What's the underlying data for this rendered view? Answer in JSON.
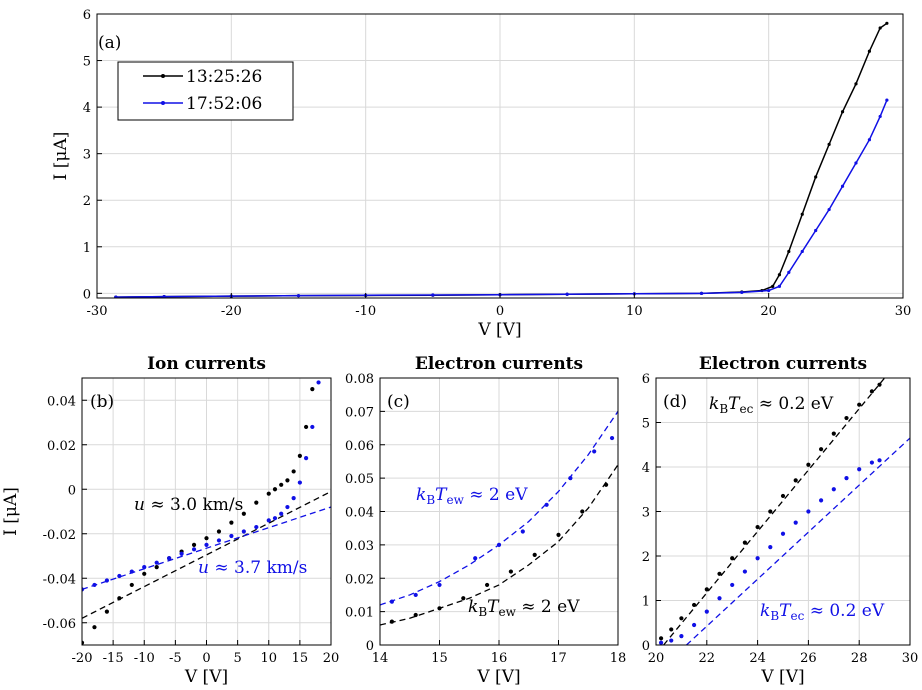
{
  "colors": {
    "black": "#000000",
    "blue": "#1010e6"
  },
  "legend": {
    "items": [
      {
        "label": "13:25:26",
        "color": "#000000"
      },
      {
        "label": "17:52:06",
        "color": "#1010e6"
      }
    ],
    "placement": "top-left"
  },
  "chart_data": [
    {
      "panel_label": "(a)",
      "type": "line",
      "title": "",
      "xlabel": "V   [V]",
      "ylabel": "I   [μA]",
      "xlim": [
        -30,
        30
      ],
      "ylim": [
        -0.1,
        6
      ],
      "xticks": [
        -30,
        -20,
        -10,
        0,
        10,
        20,
        30
      ],
      "yticks": [
        0,
        1,
        2,
        3,
        4,
        5,
        6
      ],
      "grid": true,
      "series": [
        {
          "name": "13:25:26",
          "color": "#000000",
          "x": [
            -28.6,
            -25,
            -20,
            -15,
            -10,
            -5,
            0,
            5,
            10,
            15,
            18,
            19.5,
            20.3,
            20.8,
            21.5,
            22.5,
            23.5,
            24.5,
            25.5,
            26.5,
            27.5,
            28.3,
            28.8
          ],
          "y": [
            -0.08,
            -0.07,
            -0.06,
            -0.05,
            -0.045,
            -0.04,
            -0.03,
            -0.02,
            -0.01,
            0.0,
            0.03,
            0.06,
            0.15,
            0.4,
            0.9,
            1.7,
            2.5,
            3.2,
            3.9,
            4.5,
            5.2,
            5.7,
            5.8
          ]
        },
        {
          "name": "17:52:06",
          "color": "#1010e6",
          "x": [
            -28.6,
            -25,
            -20,
            -15,
            -10,
            -5,
            0,
            5,
            10,
            15,
            18,
            20,
            20.8,
            21.5,
            22.5,
            23.5,
            24.5,
            25.5,
            26.5,
            27.5,
            28.3,
            28.8
          ],
          "y": [
            -0.08,
            -0.07,
            -0.06,
            -0.05,
            -0.04,
            -0.035,
            -0.03,
            -0.02,
            -0.01,
            0.0,
            0.02,
            0.06,
            0.15,
            0.45,
            0.9,
            1.35,
            1.8,
            2.3,
            2.8,
            3.3,
            3.8,
            4.15
          ]
        }
      ]
    },
    {
      "panel_label": "(b)",
      "type": "scatter",
      "title": "Ion currents",
      "xlabel": "V   [V]",
      "ylabel": "I   [μA]",
      "xlim": [
        -20,
        20
      ],
      "ylim": [
        -0.07,
        0.05
      ],
      "xticks": [
        -20,
        -15,
        -10,
        -5,
        0,
        5,
        10,
        15,
        20
      ],
      "yticks": [
        -0.06,
        -0.04,
        -0.02,
        0,
        0.02,
        0.04
      ],
      "ytick_labels": [
        "-0.06",
        "-0.04",
        "-0.02",
        "0",
        "0.02",
        "0.04"
      ],
      "grid": true,
      "series": [
        {
          "name": "",
          "color": "#000000",
          "x": [
            -20,
            -18,
            -16,
            -14,
            -12,
            -10,
            -8,
            -6,
            -4,
            -2,
            0,
            2,
            4,
            6,
            8,
            10,
            11,
            12,
            13,
            14,
            15,
            16,
            17
          ],
          "y": [
            -0.069,
            -0.062,
            -0.055,
            -0.049,
            -0.043,
            -0.038,
            -0.035,
            -0.031,
            -0.028,
            -0.025,
            -0.022,
            -0.019,
            -0.015,
            -0.011,
            -0.006,
            -0.002,
            0.0,
            0.002,
            0.004,
            0.008,
            0.015,
            0.028,
            0.045
          ]
        },
        {
          "name": "",
          "color": "#1010e6",
          "x": [
            -20,
            -18,
            -16,
            -14,
            -12,
            -10,
            -8,
            -6,
            -4,
            -2,
            0,
            2,
            4,
            6,
            8,
            10,
            11,
            12,
            13,
            14,
            15,
            16,
            17,
            18
          ],
          "y": [
            -0.045,
            -0.043,
            -0.041,
            -0.039,
            -0.037,
            -0.035,
            -0.033,
            -0.031,
            -0.029,
            -0.027,
            -0.025,
            -0.023,
            -0.021,
            -0.019,
            -0.017,
            -0.014,
            -0.013,
            -0.011,
            -0.008,
            -0.004,
            0.003,
            0.014,
            0.028,
            0.048
          ]
        }
      ],
      "fits": [
        {
          "color": "#000000",
          "x": [
            -20,
            20
          ],
          "y": [
            -0.058,
            -0.001
          ]
        },
        {
          "color": "#1010e6",
          "x": [
            -20,
            20
          ],
          "y": [
            -0.045,
            -0.008
          ]
        }
      ],
      "annotations": [
        {
          "text": "u ≈ 3.0 km/s",
          "color": "#000000"
        },
        {
          "text": "u ≈ 3.7 km/s",
          "color": "#1010e6"
        }
      ]
    },
    {
      "panel_label": "(c)",
      "type": "scatter",
      "title": "Electron currents",
      "xlabel": "V   [V]",
      "ylabel": "",
      "xlim": [
        14,
        18
      ],
      "ylim": [
        0,
        0.08
      ],
      "xticks": [
        14,
        15,
        16,
        17,
        18
      ],
      "yticks": [
        0,
        0.01,
        0.02,
        0.03,
        0.04,
        0.05,
        0.06,
        0.07,
        0.08
      ],
      "ytick_labels": [
        "0",
        "0.01",
        "0.02",
        "0.03",
        "0.04",
        "0.05",
        "0.06",
        "0.07",
        "0.08"
      ],
      "grid": true,
      "series": [
        {
          "name": "",
          "color": "#000000",
          "x": [
            14.2,
            14.6,
            15.0,
            15.4,
            15.8,
            16.2,
            16.6,
            17.0,
            17.4,
            17.8
          ],
          "y": [
            0.007,
            0.009,
            0.011,
            0.014,
            0.018,
            0.022,
            0.027,
            0.033,
            0.04,
            0.048
          ]
        },
        {
          "name": "",
          "color": "#1010e6",
          "x": [
            14.2,
            14.6,
            15.0,
            15.6,
            16.0,
            16.4,
            16.8,
            17.2,
            17.6,
            17.9
          ],
          "y": [
            0.013,
            0.015,
            0.018,
            0.026,
            0.03,
            0.034,
            0.042,
            0.05,
            0.058,
            0.062
          ]
        }
      ],
      "fits": [
        {
          "color": "#000000",
          "x": [
            14,
            14.5,
            15,
            15.5,
            16,
            16.5,
            17,
            17.5,
            18
          ],
          "y": [
            0.006,
            0.008,
            0.011,
            0.014,
            0.018,
            0.024,
            0.031,
            0.041,
            0.054
          ]
        },
        {
          "color": "#1010e6",
          "x": [
            14,
            14.5,
            15,
            15.5,
            16,
            16.5,
            17,
            17.5,
            18
          ],
          "y": [
            0.012,
            0.015,
            0.019,
            0.024,
            0.03,
            0.037,
            0.046,
            0.057,
            0.07
          ]
        }
      ],
      "annotations": [
        {
          "text": "kBTew ≈ 2 eV",
          "color": "#1010e6"
        },
        {
          "text": "kBTew ≈ 2 eV",
          "color": "#000000"
        }
      ]
    },
    {
      "panel_label": "(d)",
      "type": "scatter",
      "title": "Electron currents",
      "xlabel": "V   [V]",
      "ylabel": "",
      "xlim": [
        20,
        30
      ],
      "ylim": [
        0,
        6
      ],
      "xticks": [
        20,
        22,
        24,
        26,
        28,
        30
      ],
      "yticks": [
        0,
        1,
        2,
        3,
        4,
        5,
        6
      ],
      "grid": true,
      "series": [
        {
          "name": "",
          "color": "#000000",
          "x": [
            20.2,
            20.6,
            21.0,
            21.5,
            22.0,
            22.5,
            23.0,
            23.5,
            24.0,
            24.5,
            25.0,
            25.5,
            26.0,
            26.5,
            27.0,
            27.5,
            28.0,
            28.5,
            28.8
          ],
          "y": [
            0.15,
            0.35,
            0.6,
            0.9,
            1.25,
            1.6,
            1.95,
            2.3,
            2.65,
            3.0,
            3.35,
            3.7,
            4.05,
            4.4,
            4.75,
            5.1,
            5.4,
            5.7,
            5.85
          ]
        },
        {
          "name": "",
          "color": "#1010e6",
          "x": [
            20.2,
            20.6,
            21.0,
            21.5,
            22.0,
            22.5,
            23.0,
            23.5,
            24.0,
            24.5,
            25.0,
            25.5,
            26.0,
            26.5,
            27.0,
            27.5,
            28.0,
            28.5,
            28.8
          ],
          "y": [
            0.05,
            0.1,
            0.2,
            0.45,
            0.75,
            1.05,
            1.35,
            1.65,
            1.95,
            2.2,
            2.5,
            2.75,
            3.0,
            3.25,
            3.5,
            3.75,
            3.95,
            4.1,
            4.15
          ]
        }
      ],
      "fits": [
        {
          "color": "#000000",
          "x": [
            20.3,
            29
          ],
          "y": [
            0,
            6.0
          ]
        },
        {
          "color": "#1010e6",
          "x": [
            21.2,
            30
          ],
          "y": [
            0,
            4.65
          ]
        }
      ],
      "annotations": [
        {
          "text": "kBTec ≈ 0.2 eV",
          "color": "#000000"
        },
        {
          "text": "kBTec ≈ 0.2 eV",
          "color": "#1010e6"
        }
      ]
    }
  ]
}
